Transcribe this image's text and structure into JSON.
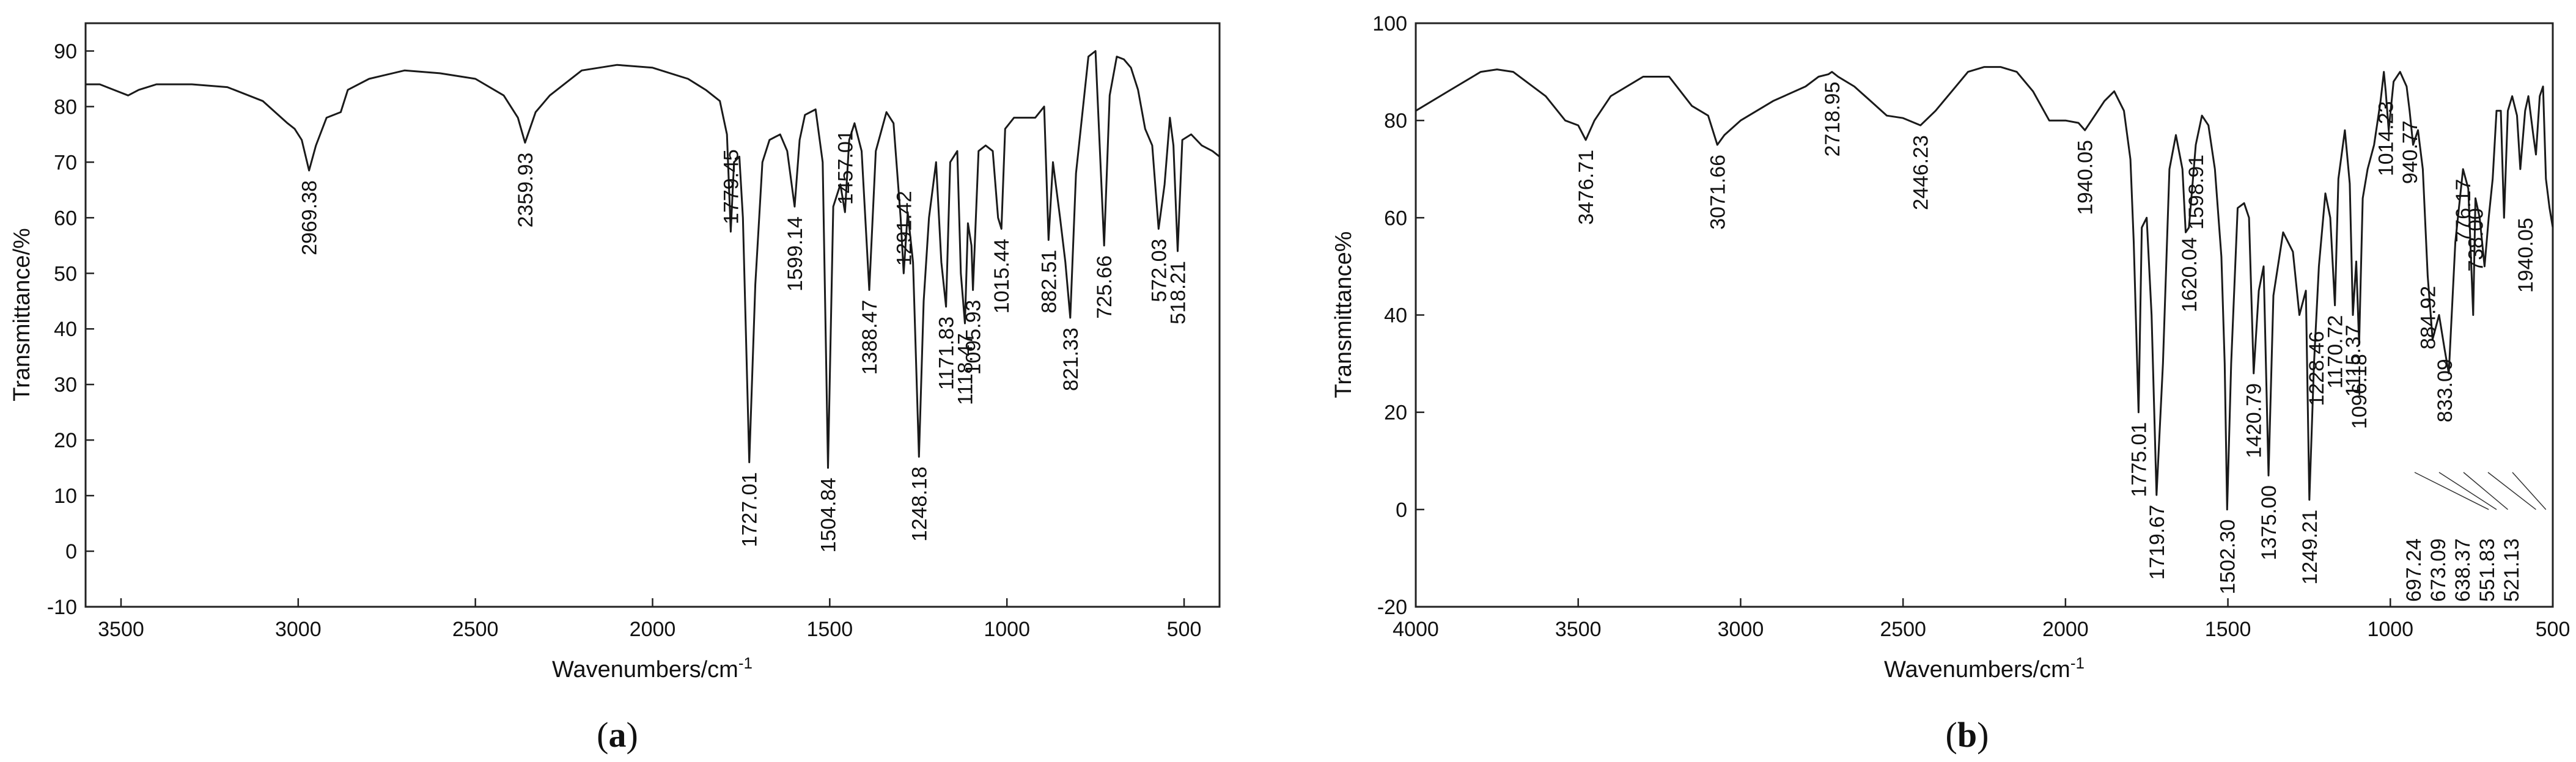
{
  "chart_data": [
    {
      "type": "line",
      "panel_label": "a",
      "title": "",
      "xlabel": "Wavenumbers/cm",
      "xlabel_sup": "-1",
      "ylabel": "Transmittance/%",
      "xlim": [
        3600,
        400
      ],
      "ylim": [
        -10,
        95
      ],
      "xticks": [
        3500,
        3000,
        2500,
        2000,
        1500,
        1000,
        500
      ],
      "yticks": [
        -10,
        0,
        10,
        20,
        30,
        40,
        50,
        60,
        70,
        80,
        90
      ],
      "x": [
        3600,
        3560,
        3520,
        3480,
        3450,
        3400,
        3300,
        3200,
        3100,
        3030,
        3010,
        2990,
        2969.38,
        2950,
        2920,
        2880,
        2860,
        2800,
        2700,
        2600,
        2500,
        2420,
        2380,
        2359.93,
        2330,
        2290,
        2200,
        2100,
        2000,
        1900,
        1850,
        1810,
        1790,
        1779.45,
        1770,
        1755,
        1745,
        1727.01,
        1710,
        1690,
        1670,
        1640,
        1620,
        1599.14,
        1585,
        1570,
        1540,
        1520,
        1504.84,
        1490,
        1470,
        1457.01,
        1445,
        1430,
        1410,
        1388.47,
        1370,
        1340,
        1320,
        1300,
        1291.42,
        1280,
        1265,
        1248.18,
        1235,
        1220,
        1200,
        1185,
        1171.83,
        1160,
        1140,
        1130,
        1118.47,
        1110,
        1100,
        1095.93,
        1080,
        1060,
        1040,
        1025,
        1015.44,
        1005,
        980,
        950,
        920,
        895,
        882.51,
        870,
        850,
        835,
        821.33,
        805,
        790,
        770,
        750,
        725.66,
        710,
        690,
        670,
        650,
        630,
        610,
        590,
        572.03,
        555,
        540,
        530,
        518.21,
        505,
        480,
        450,
        420,
        400
      ],
      "y": [
        84,
        84,
        83,
        82,
        83,
        84,
        84,
        83.5,
        81,
        77,
        76,
        74,
        68.5,
        73,
        78,
        79,
        83,
        85,
        86.5,
        86,
        85,
        82,
        78,
        73.5,
        79,
        82,
        86.5,
        87.5,
        87,
        85,
        83,
        81,
        75,
        57.5,
        70,
        71,
        60,
        16,
        48,
        70,
        74,
        75,
        72,
        62,
        74,
        78.5,
        79.5,
        70,
        15,
        62,
        66,
        61,
        74,
        77,
        72,
        47,
        72,
        79,
        77,
        60,
        50,
        61,
        52,
        17,
        45,
        60,
        70,
        52,
        44,
        70,
        72,
        50,
        41,
        59,
        55,
        47,
        72,
        73,
        72,
        60,
        58,
        76,
        78,
        78,
        78,
        80,
        56,
        70,
        60,
        52,
        42,
        68,
        77,
        89,
        90,
        55,
        82,
        89,
        88.5,
        87,
        83,
        76,
        73,
        58,
        66,
        78,
        73,
        54,
        74,
        75,
        73,
        72,
        71
      ],
      "peaks": [
        {
          "x": 2969.38,
          "label": "2969.38",
          "side": "below"
        },
        {
          "x": 2359.93,
          "label": "2359.93",
          "side": "below"
        },
        {
          "x": 1779.45,
          "label": "1779.45",
          "side": "above"
        },
        {
          "x": 1727.01,
          "label": "1727.01",
          "side": "below"
        },
        {
          "x": 1599.14,
          "label": "1599.14",
          "side": "below"
        },
        {
          "x": 1504.84,
          "label": "1504.84",
          "side": "below"
        },
        {
          "x": 1457.01,
          "label": "1457.01",
          "side": "above"
        },
        {
          "x": 1388.47,
          "label": "1388.47",
          "side": "below"
        },
        {
          "x": 1291.42,
          "label": "1291.42",
          "side": "above"
        },
        {
          "x": 1248.18,
          "label": "1248.18",
          "side": "below"
        },
        {
          "x": 1171.83,
          "label": "1171.83",
          "side": "below"
        },
        {
          "x": 1118.47,
          "label": "1118.47",
          "side": "below"
        },
        {
          "x": 1095.93,
          "label": "1095.93",
          "side": "below"
        },
        {
          "x": 1015.44,
          "label": "1015.44",
          "side": "below"
        },
        {
          "x": 882.51,
          "label": "882.51",
          "side": "below"
        },
        {
          "x": 821.33,
          "label": "821.33",
          "side": "below"
        },
        {
          "x": 725.66,
          "label": "725.66",
          "side": "below"
        },
        {
          "x": 572.03,
          "label": "572.03",
          "side": "below"
        },
        {
          "x": 518.21,
          "label": "518.21",
          "side": "below"
        }
      ]
    },
    {
      "type": "line",
      "panel_label": "b",
      "title": "",
      "xlabel": "Wavenumbers/cm",
      "xlabel_sup": "-1",
      "ylabel": "Transmittance%",
      "xlim": [
        4000,
        500
      ],
      "ylim": [
        -20,
        100
      ],
      "xticks": [
        4000,
        3500,
        3000,
        2500,
        2000,
        1500,
        1000,
        500
      ],
      "yticks": [
        -20,
        0,
        20,
        40,
        60,
        80,
        100
      ],
      "x": [
        4000,
        3900,
        3800,
        3750,
        3700,
        3600,
        3540,
        3500,
        3476.71,
        3450,
        3400,
        3300,
        3220,
        3150,
        3100,
        3071.66,
        3050,
        3000,
        2900,
        2800,
        2760,
        2730,
        2718.95,
        2700,
        2650,
        2600,
        2550,
        2500,
        2446.23,
        2400,
        2350,
        2300,
        2250,
        2200,
        2150,
        2100,
        2050,
        2000,
        1960,
        1940.05,
        1920,
        1880,
        1850,
        1820,
        1800,
        1790,
        1775.01,
        1765,
        1750,
        1735,
        1719.67,
        1700,
        1680,
        1660,
        1640,
        1630,
        1620.04,
        1610,
        1598.91,
        1580,
        1560,
        1540,
        1520,
        1510,
        1502.3,
        1490,
        1470,
        1450,
        1435,
        1420.79,
        1405,
        1390,
        1375,
        1360,
        1330,
        1300,
        1280,
        1260,
        1249.21,
        1235,
        1220,
        1200,
        1185,
        1170.72,
        1160,
        1140,
        1125,
        1115.37,
        1105,
        1096.18,
        1085,
        1070,
        1050,
        1030,
        1020,
        1014.23,
        1005,
        990,
        970,
        950,
        940.77,
        930,
        915,
        900,
        884.92,
        870,
        850,
        833.09,
        820,
        800,
        776.17,
        760,
        745,
        738.0,
        725,
        710,
        697.24,
        685,
        673.09,
        660,
        650,
        638.37,
        625,
        610,
        600,
        585,
        575,
        560,
        551.83,
        540,
        530,
        521.13,
        510,
        500
      ],
      "y": [
        82,
        86,
        90,
        90.5,
        90,
        85,
        80,
        79,
        76,
        80,
        85,
        89,
        89,
        83,
        81,
        75,
        77,
        80,
        84,
        87,
        89,
        89.5,
        90,
        89,
        87,
        84,
        81,
        80.5,
        79,
        82,
        86,
        90,
        91,
        91,
        90,
        86,
        80,
        80,
        79.5,
        78,
        80,
        84,
        86,
        82,
        72,
        55,
        20,
        58,
        60,
        40,
        3,
        30,
        70,
        77,
        70,
        57,
        58,
        66,
        75,
        81,
        79,
        70,
        52,
        30,
        0,
        30,
        62,
        63,
        60,
        28,
        45,
        50,
        7,
        44,
        57,
        53,
        40,
        45,
        2,
        30,
        50,
        65,
        60,
        42,
        68,
        78,
        67,
        40,
        51,
        34,
        64,
        70,
        75,
        84,
        90,
        86,
        78,
        88,
        90,
        87,
        82,
        75,
        78,
        70,
        48,
        35,
        40,
        33,
        28,
        55,
        70,
        66,
        40,
        64,
        60,
        50,
        60,
        68,
        82,
        82,
        60,
        82,
        85,
        81,
        70,
        82,
        85,
        77,
        73,
        85,
        87,
        68,
        62,
        58
      ],
      "peaks": [
        {
          "x": 3476.71,
          "label": "3476.71",
          "side": "below"
        },
        {
          "x": 3071.66,
          "label": "3071.66",
          "side": "below"
        },
        {
          "x": 2718.95,
          "label": "2718.95",
          "side": "below"
        },
        {
          "x": 2446.23,
          "label": "2446.23",
          "side": "below"
        },
        {
          "x": 1940.05,
          "label": "1940.05",
          "side": "below"
        },
        {
          "x": 1775.01,
          "label": "1775.01",
          "side": "below"
        },
        {
          "x": 1719.67,
          "label": "1719.67",
          "side": "below"
        },
        {
          "x": 1620.04,
          "label": "1620.04",
          "side": "below"
        },
        {
          "x": 1598.91,
          "label": "1598.91",
          "side": "below"
        },
        {
          "x": 1502.3,
          "label": "1502.30",
          "side": "below"
        },
        {
          "x": 1420.79,
          "label": "1420.79",
          "side": "below"
        },
        {
          "x": 1375.0,
          "label": "1375.00",
          "side": "below"
        },
        {
          "x": 1249.21,
          "label": "1249.21",
          "side": "below"
        },
        {
          "x": 1228.46,
          "label": "1228.46",
          "side": "below"
        },
        {
          "x": 1170.72,
          "label": "1170.72",
          "side": "below"
        },
        {
          "x": 1115.37,
          "label": "1115.37",
          "side": "below"
        },
        {
          "x": 1096.18,
          "label": "1096.18",
          "side": "below"
        },
        {
          "x": 1014.23,
          "label": "1014.23",
          "side": "below"
        },
        {
          "x": 940.77,
          "label": "940.77",
          "side": "below"
        },
        {
          "x": 884.92,
          "label": "884.92",
          "side": "below"
        },
        {
          "x": 833.09,
          "label": "833.09",
          "side": "below"
        },
        {
          "x": 776.17,
          "label": "776.17",
          "side": "below"
        },
        {
          "x": 738.0,
          "label": "738.00",
          "side": "below"
        },
        {
          "x": 697.24,
          "label": "697.24",
          "side": "leader"
        },
        {
          "x": 673.09,
          "label": "673.09",
          "side": "leader"
        },
        {
          "x": 638.37,
          "label": "638.37",
          "side": "leader"
        },
        {
          "x": 551.83,
          "label": "551.83",
          "side": "leader"
        },
        {
          "x": 521.13,
          "label": "521.13",
          "side": "leader"
        },
        {
          "x": 1940.05,
          "label": "1940.05",
          "side": "below-deep"
        }
      ]
    }
  ]
}
